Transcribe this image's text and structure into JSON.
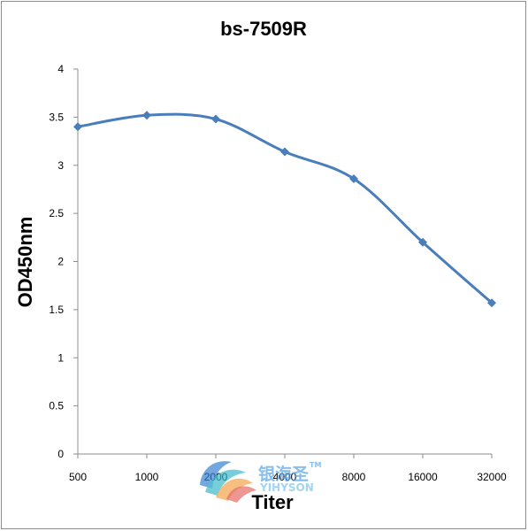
{
  "chart_data": {
    "type": "line",
    "title": "bs-7509R",
    "xlabel": "Titer",
    "ylabel": "OD450nm",
    "categories": [
      "500",
      "1000",
      "2000",
      "4000",
      "8000",
      "16000",
      "32000"
    ],
    "series": [
      {
        "values": [
          3.4,
          3.52,
          3.48,
          3.14,
          2.86,
          2.2,
          1.57
        ]
      }
    ],
    "ylim": [
      0,
      4
    ],
    "yticks": [
      "0",
      "0.5",
      "1",
      "1.5",
      "2",
      "2.5",
      "3",
      "3.5",
      "4"
    ],
    "grid": false,
    "legend": "none",
    "line_color": "#4a7ebb"
  },
  "watermark": {
    "brand_cn": "银海圣",
    "brand_en": "YIHYSON",
    "trademark": "TM"
  }
}
